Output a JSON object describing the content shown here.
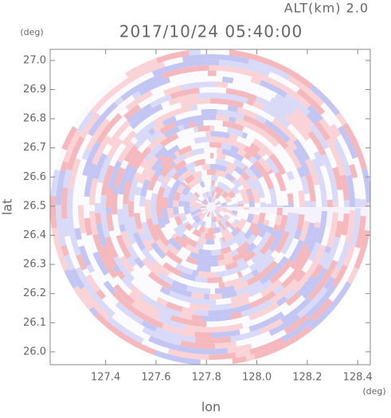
{
  "chart_data": {
    "type": "radar-ppi",
    "title": "2017/10/24 05:40:00",
    "subtitle": "ALT(km) 2.0",
    "x_label": "lon",
    "y_label": "lat",
    "x_unit": "(deg)",
    "y_unit": "(deg)",
    "xlim": [
      127.18,
      128.45
    ],
    "ylim": [
      25.956,
      27.038
    ],
    "xticks": [
      127.4,
      127.6,
      127.8,
      {
        "value": 128,
        "label": "128.0"
      },
      128.2,
      128.4
    ],
    "yticks": [
      {
        "value": 26,
        "label": "26.0"
      },
      26.1,
      26.2,
      26.3,
      26.4,
      26.5,
      26.6,
      26.7,
      26.8,
      26.9,
      {
        "value": 27,
        "label": "27.0"
      }
    ]
  }
}
